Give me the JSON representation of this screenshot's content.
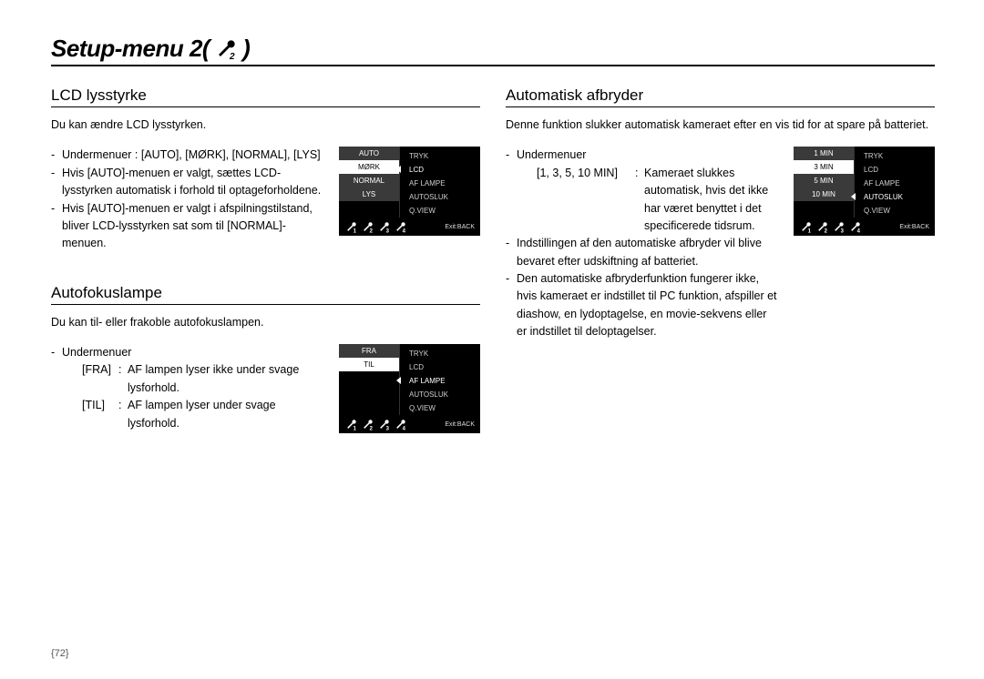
{
  "page": {
    "title_prefix": "Setup-menu 2(",
    "title_suffix": " )",
    "number": "{72}"
  },
  "lcd": {
    "heading": "LCD lysstyrke",
    "intro": "Du kan ændre LCD lysstyrken.",
    "line1": "Undermenuer : [AUTO], [MØRK], [NORMAL], [LYS]",
    "line2": "Hvis [AUTO]-menuen er valgt, sættes LCD-lysstyrken automatisk i forhold til optageforholdene.",
    "line3": "Hvis [AUTO]-menuen er valgt i afspilningstilstand, bliver LCD-lysstyrken sat som til [NORMAL]-menuen.",
    "ui": {
      "left": [
        "AUTO",
        "MØRK",
        "NORMAL",
        "LYS"
      ],
      "left_sel": 1,
      "right": [
        "TRYK",
        "LCD",
        "AF LAMPE",
        "AUTOSLUK",
        "Q.VIEW"
      ],
      "right_sel": 1,
      "exit": "Exit:BACK"
    }
  },
  "af": {
    "heading": "Autofokuslampe",
    "intro": "Du kan til- eller frakoble autofokuslampen.",
    "submenu_label": "Undermenuer",
    "fra_k": "[FRA]",
    "fra_v": "AF lampen lyser ikke under svage lysforhold.",
    "til_k": "[TIL]",
    "til_v": "AF lampen lyser under svage lysforhold.",
    "ui": {
      "left": [
        "FRA",
        "TIL"
      ],
      "left_sel": 1,
      "right": [
        "TRYK",
        "LCD",
        "AF LAMPE",
        "AUTOSLUK",
        "Q.VIEW"
      ],
      "right_sel": 2,
      "exit": "Exit:BACK"
    }
  },
  "auto": {
    "heading": "Automatisk afbryder",
    "intro": "Denne funktion slukker automatisk kameraet efter en vis tid for at spare på batteriet.",
    "submenu_label": "Undermenuer",
    "opt_k": "[1, 3, 5, 10 MIN]",
    "opt_v": "Kameraet slukkes automatisk, hvis det ikke har været benyttet i det specificerede tidsrum.",
    "b1": "Indstillingen af den automatiske afbryder vil blive bevaret efter udskiftning af batteriet.",
    "b2": "Den automatiske afbryderfunktion fungerer ikke, hvis kameraet er indstillet til PC funktion, afspiller et diashow, en lydoptagelse, en movie-sekvens eller er indstillet til deloptagelser.",
    "ui": {
      "left": [
        "1 MIN",
        "3 MIN",
        "5 MIN",
        "10 MIN"
      ],
      "left_sel": 1,
      "right": [
        "TRYK",
        "LCD",
        "AF LAMPE",
        "AUTOSLUK",
        "Q.VIEW"
      ],
      "right_sel": 3,
      "exit": "Exit:BACK"
    }
  },
  "colors": {
    "page_bg": "#ffffff",
    "text": "#000000",
    "camui_bg": "#000000",
    "menu_row": "#3a3a3a",
    "sel_bg": "#ffffff",
    "sel_fg": "#000000"
  }
}
